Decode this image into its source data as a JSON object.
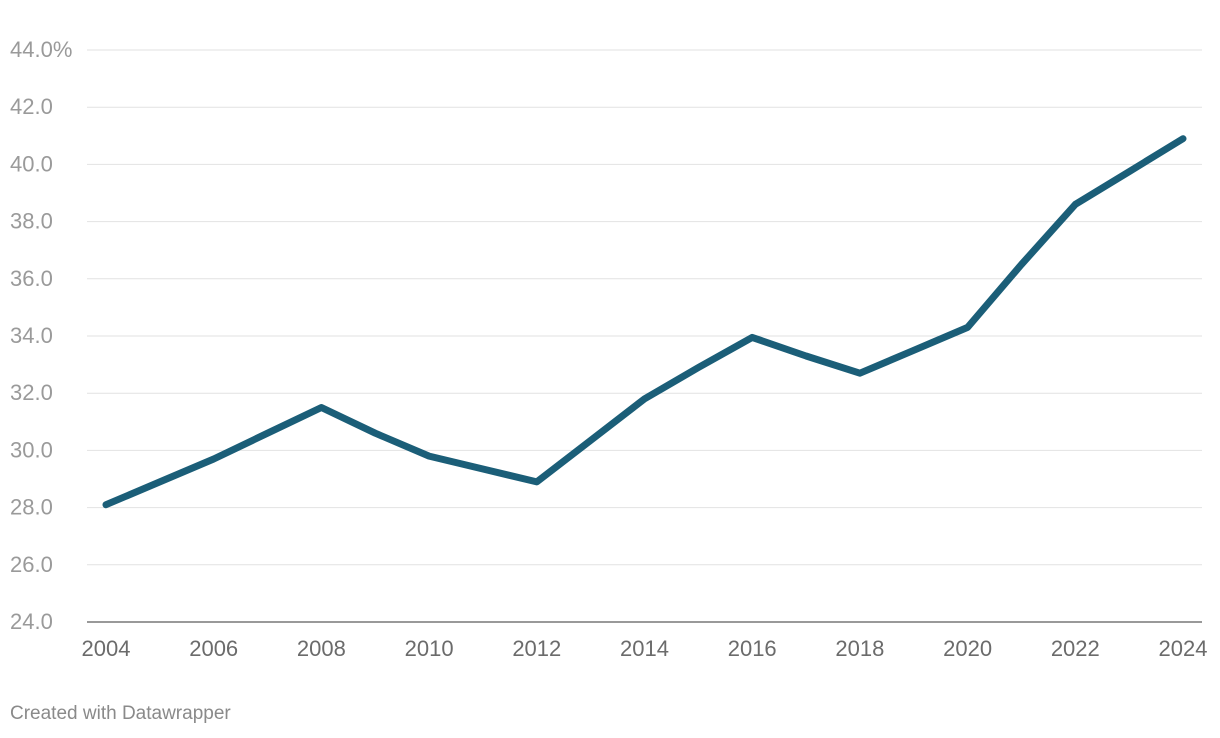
{
  "chart_data": {
    "type": "line",
    "title": "",
    "xlabel": "",
    "ylabel": "",
    "x": [
      2004,
      2005,
      2006,
      2007,
      2008,
      2009,
      2010,
      2011,
      2012,
      2013,
      2014,
      2015,
      2016,
      2017,
      2018,
      2019,
      2020,
      2021,
      2022,
      2023,
      2024
    ],
    "series": [
      {
        "color": "#1b5e78",
        "values": [
          28.1,
          28.9,
          29.7,
          30.6,
          31.5,
          30.6,
          29.8,
          29.35,
          28.9,
          30.35,
          31.8,
          32.9,
          33.95,
          33.3,
          32.7,
          33.5,
          34.3,
          36.5,
          38.6,
          39.75,
          40.9
        ]
      }
    ],
    "xlim": [
      2004,
      2024
    ],
    "ylim": [
      24,
      44
    ],
    "x_ticks": [
      2004,
      2006,
      2008,
      2010,
      2012,
      2014,
      2016,
      2018,
      2020,
      2022,
      2024
    ],
    "x_tick_labels": [
      "2004",
      "2006",
      "2008",
      "2010",
      "2012",
      "2014",
      "2016",
      "2018",
      "2020",
      "2022",
      "2024"
    ],
    "y_ticks": [
      24,
      26,
      28,
      30,
      32,
      34,
      36,
      38,
      40,
      42,
      44
    ],
    "y_tick_labels": [
      "24.0",
      "26.0",
      "28.0",
      "30.0",
      "32.0",
      "34.0",
      "36.0",
      "38.0",
      "40.0",
      "42.0",
      "44.0%"
    ],
    "grid": true,
    "legend": "none",
    "credit": "Created with Datawrapper"
  }
}
